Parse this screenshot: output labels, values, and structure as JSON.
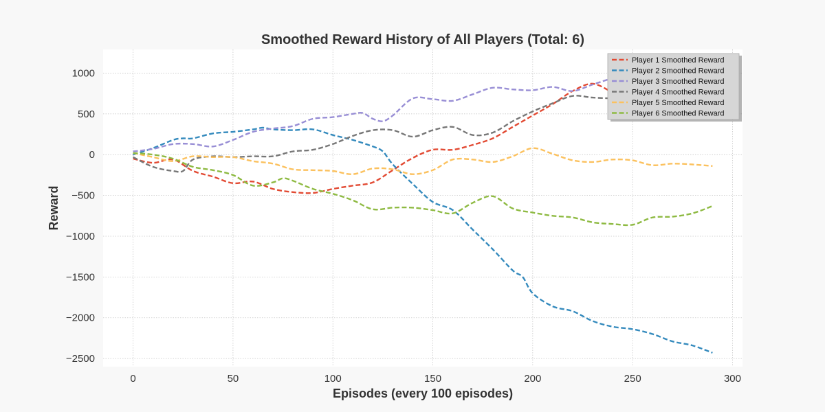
{
  "chart_data": {
    "type": "line",
    "title": "Smoothed Reward History of All Players (Total: 6)",
    "xlabel": "Episodes (every 100 episodes)",
    "ylabel": "Reward",
    "xlim": [
      -15,
      305
    ],
    "ylim": [
      -2600,
      1290
    ],
    "xticks": [
      0,
      50,
      100,
      150,
      200,
      250,
      300
    ],
    "xtick_labels": [
      "0",
      "50",
      "100",
      "150",
      "200",
      "250",
      "300"
    ],
    "yticks": [
      1000,
      500,
      0,
      -500,
      -1000,
      -1500,
      -2000,
      -2500
    ],
    "ytick_labels": [
      "1000",
      "500",
      "0",
      "−500",
      "−1000",
      "−1500",
      "−2000",
      "−2500"
    ],
    "grid": true,
    "legend_position": "top-right",
    "line_style": "dashed",
    "series": [
      {
        "name": "Player 1 Smoothed Reward",
        "color": "#e24a33",
        "x": [
          0,
          10,
          20,
          30,
          40,
          50,
          60,
          70,
          80,
          90,
          100,
          110,
          120,
          130,
          140,
          150,
          160,
          170,
          180,
          190,
          200,
          210,
          220,
          230,
          240
        ],
        "y": [
          -50,
          -100,
          -60,
          -200,
          -270,
          -350,
          -330,
          -420,
          -460,
          -470,
          -420,
          -380,
          -340,
          -190,
          -40,
          60,
          60,
          120,
          200,
          340,
          480,
          620,
          780,
          870,
          760
        ]
      },
      {
        "name": "Player 2 Smoothed Reward",
        "color": "#348abd",
        "x": [
          0,
          10,
          20,
          25,
          30,
          40,
          50,
          60,
          65,
          70,
          80,
          90,
          100,
          110,
          120,
          125,
          130,
          140,
          150,
          160,
          170,
          180,
          190,
          195,
          200,
          210,
          220,
          230,
          240,
          250,
          260,
          270,
          280,
          290
        ],
        "y": [
          0,
          80,
          180,
          200,
          200,
          260,
          280,
          310,
          330,
          310,
          300,
          310,
          240,
          180,
          100,
          40,
          -120,
          -360,
          -580,
          -680,
          -920,
          -1160,
          -1420,
          -1500,
          -1700,
          -1860,
          -1920,
          -2040,
          -2110,
          -2140,
          -2200,
          -2290,
          -2340,
          -2430
        ]
      },
      {
        "name": "Player 3 Smoothed Reward",
        "color": "#988ed5",
        "x": [
          0,
          10,
          20,
          30,
          40,
          50,
          60,
          70,
          80,
          90,
          100,
          110,
          115,
          120,
          125,
          130,
          140,
          150,
          160,
          170,
          180,
          190,
          200,
          210,
          220,
          230,
          240
        ],
        "y": [
          40,
          70,
          130,
          130,
          100,
          180,
          280,
          320,
          350,
          440,
          460,
          500,
          510,
          440,
          410,
          480,
          690,
          680,
          660,
          740,
          820,
          800,
          790,
          830,
          780,
          860,
          940
        ]
      },
      {
        "name": "Player 4 Smoothed Reward",
        "color": "#777777",
        "x": [
          0,
          10,
          20,
          25,
          30,
          40,
          50,
          60,
          70,
          80,
          90,
          100,
          110,
          120,
          130,
          140,
          150,
          160,
          170,
          180,
          190,
          200,
          210,
          220,
          230,
          240
        ],
        "y": [
          -30,
          -150,
          -200,
          -200,
          -60,
          -20,
          -30,
          -20,
          -20,
          40,
          60,
          130,
          230,
          300,
          300,
          220,
          300,
          340,
          240,
          270,
          410,
          530,
          630,
          720,
          700,
          690
        ]
      },
      {
        "name": "Player 5 Smoothed Reward",
        "color": "#fbc15e",
        "x": [
          0,
          10,
          20,
          30,
          40,
          50,
          60,
          70,
          80,
          90,
          100,
          110,
          120,
          130,
          140,
          150,
          160,
          170,
          180,
          190,
          200,
          210,
          220,
          230,
          240,
          250,
          260,
          270,
          280,
          290
        ],
        "y": [
          20,
          -30,
          -80,
          -20,
          -30,
          -30,
          -80,
          -110,
          -180,
          -190,
          -200,
          -240,
          -170,
          -180,
          -240,
          -190,
          -60,
          -60,
          -90,
          -20,
          80,
          10,
          -70,
          -90,
          -60,
          -70,
          -130,
          -110,
          -120,
          -140
        ]
      },
      {
        "name": "Player 6 Smoothed Reward",
        "color": "#8eba42",
        "x": [
          0,
          10,
          20,
          30,
          40,
          50,
          60,
          70,
          75,
          80,
          90,
          100,
          110,
          120,
          130,
          140,
          150,
          160,
          170,
          180,
          190,
          200,
          210,
          220,
          230,
          240,
          250,
          260,
          270,
          280,
          290
        ],
        "y": [
          20,
          0,
          -50,
          -150,
          -190,
          -250,
          -380,
          -340,
          -290,
          -320,
          -420,
          -480,
          -560,
          -670,
          -650,
          -650,
          -680,
          -720,
          -590,
          -510,
          -660,
          -710,
          -750,
          -770,
          -830,
          -850,
          -860,
          -770,
          -760,
          -720,
          -630
        ]
      }
    ]
  }
}
